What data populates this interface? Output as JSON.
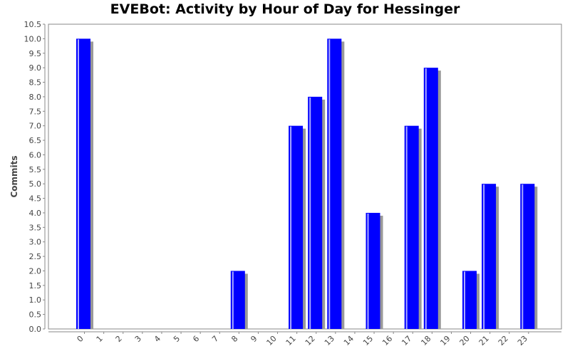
{
  "chart_data": {
    "type": "bar",
    "title": "EVEBot: Activity by Hour of Day for Hessinger",
    "xlabel": "",
    "ylabel": "Commits",
    "categories": [
      "0",
      "1",
      "2",
      "3",
      "4",
      "5",
      "6",
      "7",
      "8",
      "9",
      "10",
      "11",
      "12",
      "13",
      "14",
      "15",
      "16",
      "17",
      "18",
      "19",
      "20",
      "21",
      "22",
      "23"
    ],
    "values": [
      10,
      0,
      0,
      0,
      0,
      0,
      0,
      0,
      2,
      0,
      0,
      7,
      8,
      10,
      0,
      4,
      0,
      7,
      9,
      0,
      2,
      5,
      0,
      5
    ],
    "ylim": [
      0,
      10.5
    ],
    "yticks": [
      "0.0",
      "0.5",
      "1.0",
      "1.5",
      "2.0",
      "2.5",
      "3.0",
      "3.5",
      "4.0",
      "4.5",
      "5.0",
      "5.5",
      "6.0",
      "6.5",
      "7.0",
      "7.5",
      "8.0",
      "8.5",
      "9.0",
      "9.5",
      "10.0",
      "10.5"
    ],
    "grid": false,
    "legend": "none",
    "colors": {
      "bar": "#0000ff",
      "bar_highlight": "#aaaaff",
      "shadow": "#999999",
      "axis": "#888888"
    }
  }
}
